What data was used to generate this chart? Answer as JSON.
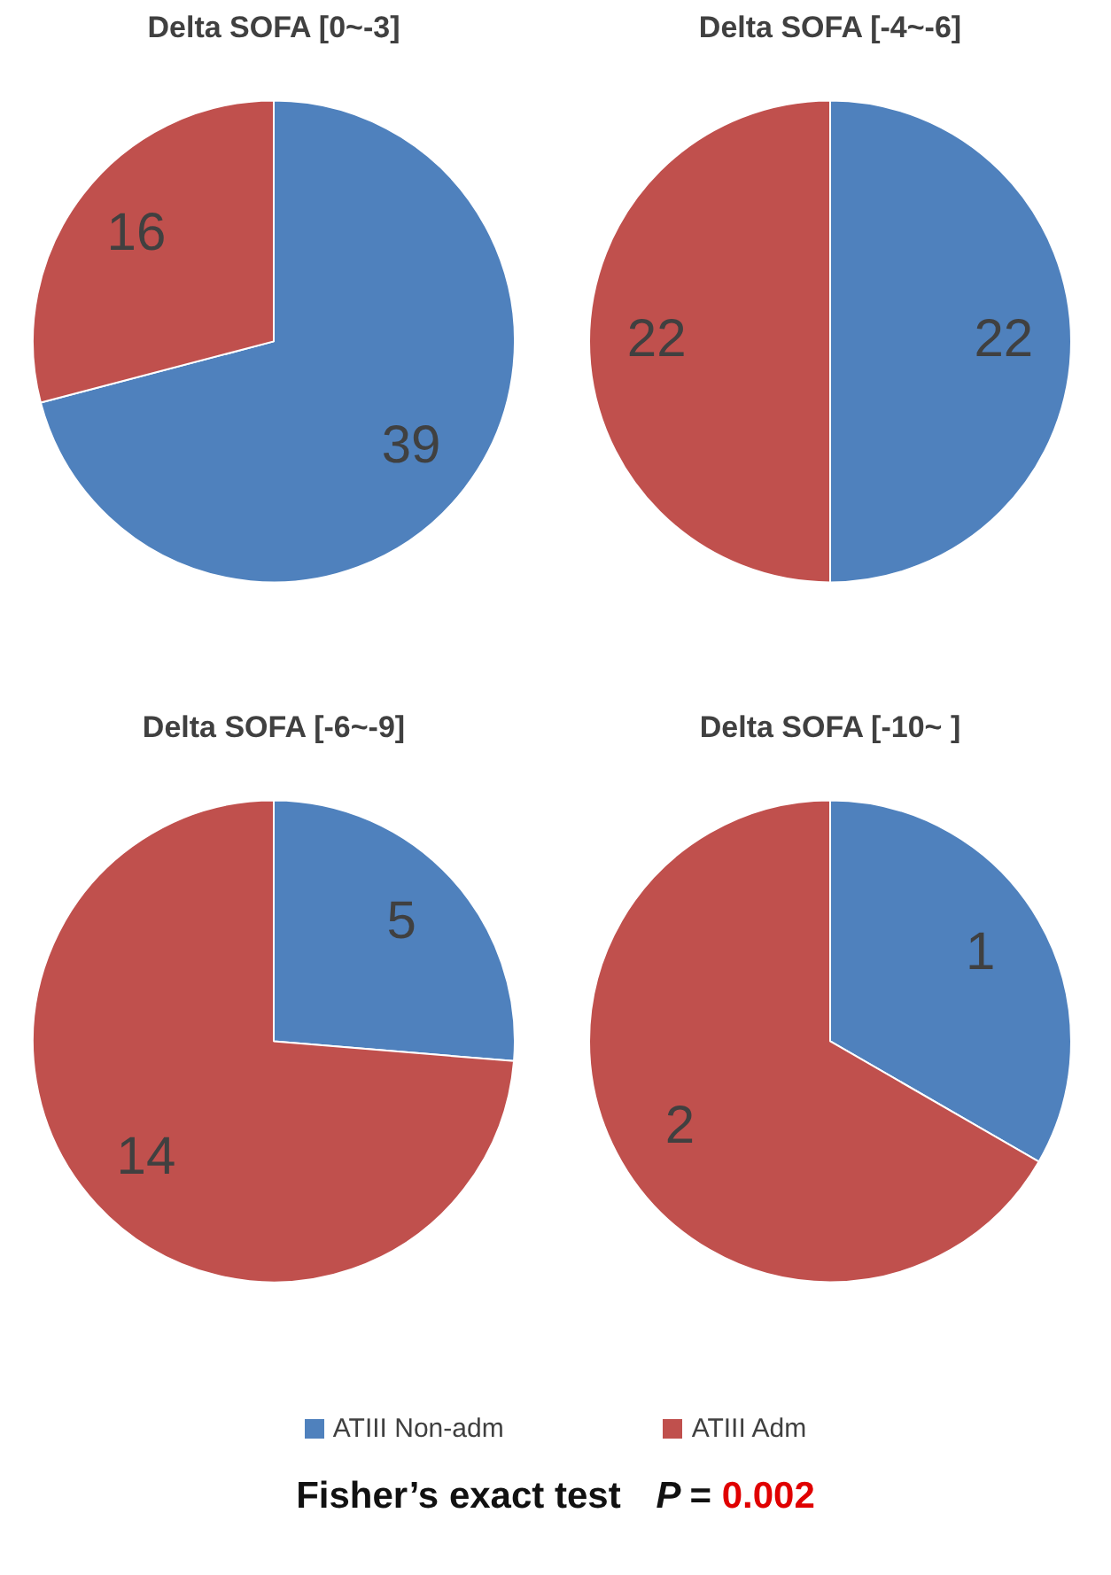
{
  "chart_data": [
    {
      "type": "pie",
      "title": "Delta SOFA [0~-3]",
      "categories": [
        "ATIII Non-adm",
        "ATIII Adm"
      ],
      "values": [
        39,
        16
      ],
      "colors": [
        "#4f81bd",
        "#c0504d"
      ],
      "data_labels": true,
      "legend": "bottom"
    },
    {
      "type": "pie",
      "title": "Delta SOFA [-4~-6]",
      "categories": [
        null,
        null
      ],
      "values": [
        22,
        22
      ],
      "colors": [
        "#4f81bd",
        "#c0504d"
      ],
      "data_labels": true
    },
    {
      "type": "pie",
      "title": "Delta SOFA [-6~-9]",
      "categories": [
        null,
        null
      ],
      "values": [
        5,
        14
      ],
      "colors": [
        "#4f81bd",
        "#c0504d"
      ],
      "data_labels": true
    },
    {
      "type": "pie",
      "title": "Delta SOFA [-10~ ]",
      "categories": [
        null,
        null
      ],
      "values": [
        1,
        2
      ],
      "colors": [
        "#4f81bd",
        "#c0504d"
      ],
      "data_labels": true,
      "annotations": [
        "Fisher’s exact test P = 0.002"
      ]
    }
  ]
}
